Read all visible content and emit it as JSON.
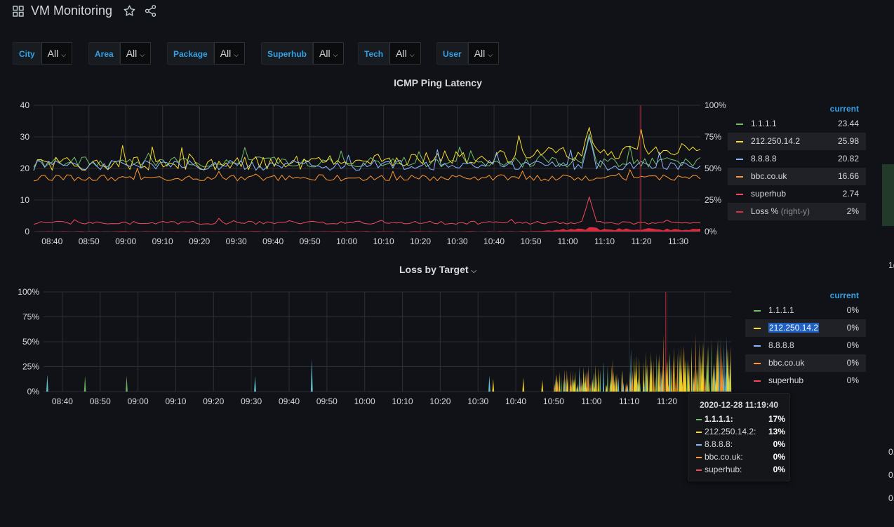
{
  "dashboard": {
    "title": "VM Monitoring"
  },
  "variables": [
    {
      "label": "City",
      "value": "All"
    },
    {
      "label": "Area",
      "value": "All"
    },
    {
      "label": "Package",
      "value": "All"
    },
    {
      "label": "Superhub",
      "value": "All"
    },
    {
      "label": "Tech",
      "value": "All"
    },
    {
      "label": "User",
      "value": "All"
    }
  ],
  "colors": {
    "green": "#73bf69",
    "yellow": "#f2cc0c",
    "blue": "#5794f2",
    "teal": "#6ed0e0",
    "orange": "#ff9830",
    "red": "#f2495c",
    "loss": "#e02f44",
    "accent": "#33a2e5",
    "bg": "#111217",
    "grid": "#2c2f33"
  },
  "latency_panel": {
    "title": "ICMP Ping Latency",
    "legend_header": "current",
    "legend": [
      {
        "name": "1.1.1.1",
        "value": "23.44",
        "color": "#73bf69"
      },
      {
        "name": "212.250.14.2",
        "value": "25.98",
        "color": "#fade2a"
      },
      {
        "name": "8.8.8.8",
        "value": "20.82",
        "color": "#8ab8ff"
      },
      {
        "name": "bbc.co.uk",
        "value": "16.66",
        "color": "#ff9830"
      },
      {
        "name": "superhub",
        "value": "2.74",
        "color": "#f2495c"
      },
      {
        "name": "Loss %",
        "note": "(right-y)",
        "value": "2%",
        "color": "#e02f44"
      }
    ]
  },
  "loss_panel": {
    "title": "Loss by Target",
    "title_caret": "⌵",
    "legend_header": "current",
    "legend": [
      {
        "name": "1.1.1.1",
        "value": "0%",
        "color": "#73bf69"
      },
      {
        "name": "212.250.14.2",
        "value": "0%",
        "color": "#fade2a"
      },
      {
        "name": "8.8.8.8",
        "value": "0%",
        "color": "#8ab8ff"
      },
      {
        "name": "bbc.co.uk",
        "value": "0%",
        "color": "#ff9830"
      },
      {
        "name": "superhub",
        "value": "0%",
        "color": "#f2495c"
      }
    ]
  },
  "tooltip": {
    "time": "2020-12-28 11:19:40",
    "rows": [
      {
        "name": "1.1.1.1:",
        "value": "17%",
        "color": "#73bf69"
      },
      {
        "name": "212.250.14.2:",
        "value": "13%",
        "color": "#fade2a"
      },
      {
        "name": "8.8.8.8:",
        "value": "0%",
        "color": "#8ab8ff"
      },
      {
        "name": "bbc.co.uk:",
        "value": "0%",
        "color": "#ff9830"
      },
      {
        "name": "superhub:",
        "value": "0%",
        "color": "#f2495c"
      }
    ]
  },
  "edge_fragments": [
    "1(",
    "0.",
    "0.",
    "0."
  ],
  "chart_data": [
    {
      "type": "line",
      "title": "ICMP Ping Latency",
      "x_ticks": [
        "08:40",
        "08:50",
        "09:00",
        "09:10",
        "09:20",
        "09:30",
        "09:40",
        "09:50",
        "10:00",
        "10:10",
        "10:20",
        "10:30",
        "10:40",
        "10:50",
        "11:00",
        "11:10",
        "11:20",
        "11:30"
      ],
      "x_range": [
        "08:35",
        "11:36"
      ],
      "y_left_ticks": [
        "0",
        "10",
        "20",
        "30",
        "40"
      ],
      "ylim_left": [
        0,
        40
      ],
      "y_right_ticks": [
        "0%",
        "25%",
        "50%",
        "75%",
        "100%"
      ],
      "ylim_right": [
        0,
        100
      ],
      "grid": true,
      "legend_placement": "right",
      "marker_time": "11:19:40",
      "series": [
        {
          "name": "1.1.1.1",
          "axis": "left",
          "base": 22,
          "noise": 1.6,
          "end": 23.44,
          "spike_at": "11:06",
          "spike": 31,
          "color": "#73bf69"
        },
        {
          "name": "212.250.14.2",
          "axis": "left",
          "base": 21.5,
          "noise": 2.2,
          "end": 25.98,
          "trend": 4.5,
          "spike_at": "11:06",
          "spike": 33,
          "color": "#fade2a"
        },
        {
          "name": "8.8.8.8",
          "axis": "left",
          "base": 21,
          "noise": 1.6,
          "end": 20.82,
          "spike_at": "11:06",
          "spike": 30,
          "color": "#8ab8ff"
        },
        {
          "name": "bbc.co.uk",
          "axis": "left",
          "base": 17,
          "noise": 1.0,
          "end": 16.66,
          "color": "#ff9830"
        },
        {
          "name": "superhub",
          "axis": "left",
          "base": 2.8,
          "noise": 0.5,
          "end": 2.74,
          "spike_at": "11:06",
          "spike": 11,
          "color": "#f2495c"
        },
        {
          "name": "Loss %",
          "axis": "right",
          "type": "area",
          "base": 0,
          "active_from": "10:45",
          "max": 3,
          "end": 2,
          "color": "#e02f44"
        }
      ]
    },
    {
      "type": "bar",
      "title": "Loss by Target",
      "x_ticks": [
        "08:40",
        "08:50",
        "09:00",
        "09:10",
        "09:20",
        "09:30",
        "09:40",
        "09:50",
        "10:00",
        "10:10",
        "10:20",
        "10:30",
        "10:40",
        "10:50",
        "11:00",
        "11:10",
        "11:20",
        "11:30"
      ],
      "x_range": [
        "08:35",
        "11:37"
      ],
      "y_ticks": [
        "0%",
        "25%",
        "50%",
        "75%",
        "100%"
      ],
      "ylim": [
        0,
        100
      ],
      "grid": true,
      "legend_placement": "right",
      "marker_time": "11:19:40",
      "spikes": [
        {
          "t": "08:36",
          "v": 17,
          "color": "#6ed0e0"
        },
        {
          "t": "08:46",
          "v": 16,
          "color": "#73bf69"
        },
        {
          "t": "08:57",
          "v": 16,
          "color": "#73bf69"
        },
        {
          "t": "09:31",
          "v": 16,
          "color": "#6ed0e0"
        },
        {
          "t": "09:46",
          "v": 33,
          "color": "#6ed0e0"
        },
        {
          "t": "10:33",
          "v": 16,
          "color": "#6ed0e0"
        },
        {
          "t": "10:34",
          "v": 13,
          "color": "#fade2a"
        },
        {
          "t": "10:42",
          "v": 14,
          "color": "#fade2a"
        },
        {
          "t": "10:47",
          "v": 12,
          "color": "#fade2a"
        }
      ],
      "dense_from": "10:50",
      "dense_to": "11:37",
      "dense_max": 58
    }
  ]
}
